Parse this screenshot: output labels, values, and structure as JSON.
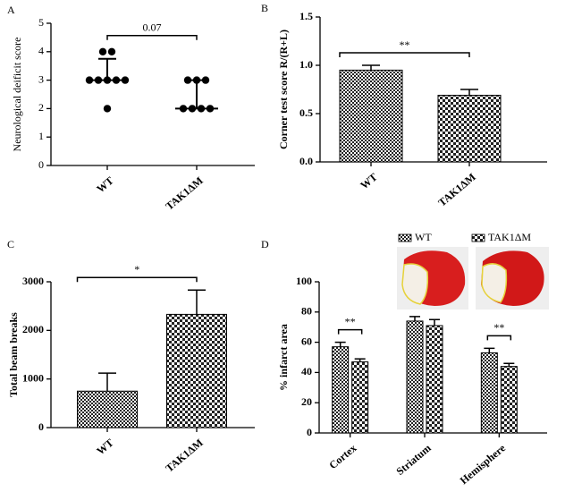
{
  "chart_data": [
    {
      "type": "dot",
      "label": "A",
      "ylabel": "Neurological deificit score",
      "categories": [
        "WT",
        "TAK1ΔM"
      ],
      "values": [
        [
          4,
          4,
          3,
          3,
          3,
          3,
          3,
          2
        ],
        [
          3,
          3,
          3,
          2,
          2,
          2,
          2
        ]
      ],
      "medians": [
        3,
        2
      ],
      "upper": [
        3.75,
        3
      ],
      "ylim": [
        0,
        5
      ],
      "yticks": [
        0,
        1,
        2,
        3,
        4,
        5
      ],
      "annotation": "0.07"
    },
    {
      "type": "bar",
      "label": "B",
      "ylabel": "Corner test score  R/(R+L)",
      "categories": [
        "WT",
        "TAK1ΔM"
      ],
      "values": [
        0.95,
        0.69
      ],
      "errors": [
        0.05,
        0.06
      ],
      "ylim": [
        0,
        1.5
      ],
      "yticks": [
        {
          "value": 0,
          "label": "0.0"
        },
        0.5,
        {
          "value": 1,
          "label": "1.0"
        },
        1.5
      ],
      "annotation": "**"
    },
    {
      "type": "bar",
      "label": "C",
      "ylabel": "Total beam breaks",
      "categories": [
        "WT",
        "TAK1ΔM"
      ],
      "values": [
        750,
        2330
      ],
      "errors": [
        370,
        500
      ],
      "ylim": [
        0,
        3000
      ],
      "yticks": [
        0,
        1000,
        2000,
        3000
      ],
      "annotation": "*"
    },
    {
      "type": "bar",
      "label": "D",
      "ylabel": "% infarct area",
      "categories": [
        "Cortex",
        "Striatum",
        "Hemisphere"
      ],
      "series": [
        {
          "name": "WT",
          "values": [
            57,
            74,
            53
          ],
          "errors": [
            3,
            3,
            3
          ]
        },
        {
          "name": "TAK1ΔM",
          "values": [
            47,
            71,
            44
          ],
          "errors": [
            2,
            4,
            2
          ]
        }
      ],
      "annotations": [
        "**",
        null,
        "**"
      ],
      "ylim": [
        0,
        100
      ],
      "yticks": [
        0,
        20,
        40,
        60,
        80,
        100
      ]
    }
  ]
}
